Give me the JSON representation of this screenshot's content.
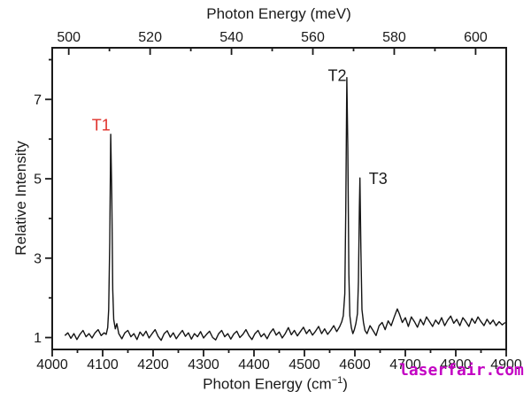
{
  "watermark": {
    "text": "laserfair.com",
    "color": "#c303c3"
  },
  "chart_data": {
    "type": "line",
    "top_axis": {
      "label": "Photon Energy (meV)",
      "unit": "meV",
      "major_ticks": [
        500,
        520,
        540,
        560,
        580,
        600
      ],
      "minor_ticks": [
        510,
        530,
        550,
        570,
        590
      ],
      "cm_per_meV": 8.065541
    },
    "bottom_axis": {
      "label_pre": "Photon Energy (cm",
      "label_sup": "−1",
      "label_post": ")",
      "unit": "cm-1",
      "major_ticks": [
        4000,
        4100,
        4200,
        4300,
        4400,
        4500,
        4600,
        4700,
        4800,
        4900
      ],
      "minor_ticks": [
        4050,
        4150,
        4250,
        4350,
        4450,
        4550,
        4650,
        4750,
        4850
      ]
    },
    "y_axis": {
      "label": "Relative Intensity",
      "major_ticks": [
        1,
        3,
        5,
        7
      ],
      "minor_ticks": [
        2,
        4,
        6,
        8
      ]
    },
    "x_range": [
      4000,
      4900
    ],
    "y_range": [
      0.7,
      8.3
    ],
    "grid": "off",
    "legend": "none",
    "line_color": "#141414",
    "axis_color": "#1a1a1a",
    "annotations": [
      {
        "label": "T1",
        "x": 4097,
        "y": 6.35,
        "color": "#e0302a"
      },
      {
        "label": "T2",
        "x": 4565,
        "y": 7.6,
        "color": "#1a1a1a"
      },
      {
        "label": "T3",
        "x": 4646,
        "y": 5.0,
        "color": "#1a1a1a"
      }
    ],
    "peaks": [
      {
        "name": "T1",
        "x_cm": 4116,
        "intensity": 6.1
      },
      {
        "name": "T2",
        "x_cm": 4584,
        "intensity": 7.55
      },
      {
        "name": "T3",
        "x_cm": 4610,
        "intensity": 5.0
      }
    ],
    "points": [
      [
        4025,
        1.05
      ],
      [
        4031,
        1.12
      ],
      [
        4037,
        0.98
      ],
      [
        4043,
        1.1
      ],
      [
        4049,
        0.95
      ],
      [
        4055,
        1.08
      ],
      [
        4061,
        1.18
      ],
      [
        4067,
        1.02
      ],
      [
        4073,
        1.1
      ],
      [
        4079,
        0.99
      ],
      [
        4085,
        1.12
      ],
      [
        4091,
        1.2
      ],
      [
        4097,
        1.05
      ],
      [
        4103,
        1.12
      ],
      [
        4107,
        1.08
      ],
      [
        4110,
        1.25
      ],
      [
        4112,
        1.7
      ],
      [
        4114,
        3.4
      ],
      [
        4116,
        6.12
      ],
      [
        4118,
        4.6
      ],
      [
        4120,
        2.2
      ],
      [
        4122,
        1.45
      ],
      [
        4125,
        1.22
      ],
      [
        4128,
        1.35
      ],
      [
        4132,
        1.1
      ],
      [
        4138,
        0.97
      ],
      [
        4144,
        1.12
      ],
      [
        4150,
        1.18
      ],
      [
        4156,
        1.02
      ],
      [
        4162,
        1.1
      ],
      [
        4168,
        0.95
      ],
      [
        4174,
        1.14
      ],
      [
        4180,
        1.04
      ],
      [
        4186,
        1.16
      ],
      [
        4192,
        0.99
      ],
      [
        4198,
        1.1
      ],
      [
        4204,
        1.2
      ],
      [
        4210,
        1.03
      ],
      [
        4216,
        0.93
      ],
      [
        4222,
        1.1
      ],
      [
        4228,
        1.17
      ],
      [
        4234,
        1.01
      ],
      [
        4240,
        1.12
      ],
      [
        4246,
        0.97
      ],
      [
        4252,
        1.08
      ],
      [
        4258,
        1.18
      ],
      [
        4264,
        1.03
      ],
      [
        4270,
        1.12
      ],
      [
        4276,
        0.96
      ],
      [
        4282,
        1.1
      ],
      [
        4288,
        1.02
      ],
      [
        4294,
        1.15
      ],
      [
        4300,
        0.99
      ],
      [
        4306,
        1.08
      ],
      [
        4312,
        1.16
      ],
      [
        4318,
        1.0
      ],
      [
        4324,
        0.94
      ],
      [
        4330,
        1.1
      ],
      [
        4336,
        1.18
      ],
      [
        4342,
        1.02
      ],
      [
        4348,
        1.1
      ],
      [
        4354,
        0.96
      ],
      [
        4360,
        1.09
      ],
      [
        4366,
        1.16
      ],
      [
        4372,
        1.0
      ],
      [
        4378,
        1.08
      ],
      [
        4384,
        1.2
      ],
      [
        4390,
        1.05
      ],
      [
        4396,
        0.95
      ],
      [
        4402,
        1.1
      ],
      [
        4408,
        1.18
      ],
      [
        4414,
        1.02
      ],
      [
        4420,
        1.1
      ],
      [
        4426,
        0.97
      ],
      [
        4432,
        1.12
      ],
      [
        4438,
        1.22
      ],
      [
        4444,
        1.06
      ],
      [
        4450,
        1.14
      ],
      [
        4456,
        0.99
      ],
      [
        4462,
        1.1
      ],
      [
        4468,
        1.25
      ],
      [
        4474,
        1.07
      ],
      [
        4480,
        1.18
      ],
      [
        4486,
        1.04
      ],
      [
        4492,
        1.15
      ],
      [
        4498,
        1.26
      ],
      [
        4504,
        1.1
      ],
      [
        4510,
        1.2
      ],
      [
        4516,
        1.06
      ],
      [
        4522,
        1.16
      ],
      [
        4528,
        1.28
      ],
      [
        4534,
        1.1
      ],
      [
        4540,
        1.22
      ],
      [
        4546,
        1.08
      ],
      [
        4552,
        1.18
      ],
      [
        4558,
        1.3
      ],
      [
        4564,
        1.15
      ],
      [
        4570,
        1.28
      ],
      [
        4574,
        1.4
      ],
      [
        4577,
        1.55
      ],
      [
        4580,
        2.1
      ],
      [
        4582,
        4.2
      ],
      [
        4584,
        7.55
      ],
      [
        4586,
        5.8
      ],
      [
        4588,
        2.6
      ],
      [
        4590,
        1.55
      ],
      [
        4593,
        1.25
      ],
      [
        4596,
        1.1
      ],
      [
        4599,
        1.2
      ],
      [
        4602,
        1.35
      ],
      [
        4605,
        1.6
      ],
      [
        4607,
        2.4
      ],
      [
        4609,
        4.3
      ],
      [
        4610,
        5.02
      ],
      [
        4612,
        3.2
      ],
      [
        4614,
        1.7
      ],
      [
        4617,
        1.38
      ],
      [
        4620,
        1.18
      ],
      [
        4624,
        1.1
      ],
      [
        4630,
        1.3
      ],
      [
        4636,
        1.18
      ],
      [
        4642,
        1.05
      ],
      [
        4648,
        1.3
      ],
      [
        4654,
        1.38
      ],
      [
        4660,
        1.2
      ],
      [
        4666,
        1.42
      ],
      [
        4672,
        1.3
      ],
      [
        4678,
        1.52
      ],
      [
        4684,
        1.72
      ],
      [
        4688,
        1.6
      ],
      [
        4694,
        1.38
      ],
      [
        4700,
        1.5
      ],
      [
        4706,
        1.28
      ],
      [
        4712,
        1.52
      ],
      [
        4718,
        1.4
      ],
      [
        4724,
        1.26
      ],
      [
        4730,
        1.46
      ],
      [
        4736,
        1.32
      ],
      [
        4742,
        1.52
      ],
      [
        4748,
        1.4
      ],
      [
        4754,
        1.28
      ],
      [
        4760,
        1.44
      ],
      [
        4766,
        1.34
      ],
      [
        4772,
        1.5
      ],
      [
        4778,
        1.3
      ],
      [
        4784,
        1.44
      ],
      [
        4790,
        1.54
      ],
      [
        4796,
        1.36
      ],
      [
        4802,
        1.46
      ],
      [
        4808,
        1.3
      ],
      [
        4814,
        1.5
      ],
      [
        4820,
        1.4
      ],
      [
        4826,
        1.28
      ],
      [
        4832,
        1.48
      ],
      [
        4838,
        1.36
      ],
      [
        4844,
        1.52
      ],
      [
        4850,
        1.4
      ],
      [
        4856,
        1.3
      ],
      [
        4862,
        1.46
      ],
      [
        4868,
        1.34
      ],
      [
        4874,
        1.44
      ],
      [
        4880,
        1.3
      ],
      [
        4886,
        1.4
      ],
      [
        4892,
        1.32
      ],
      [
        4898,
        1.38
      ]
    ]
  }
}
